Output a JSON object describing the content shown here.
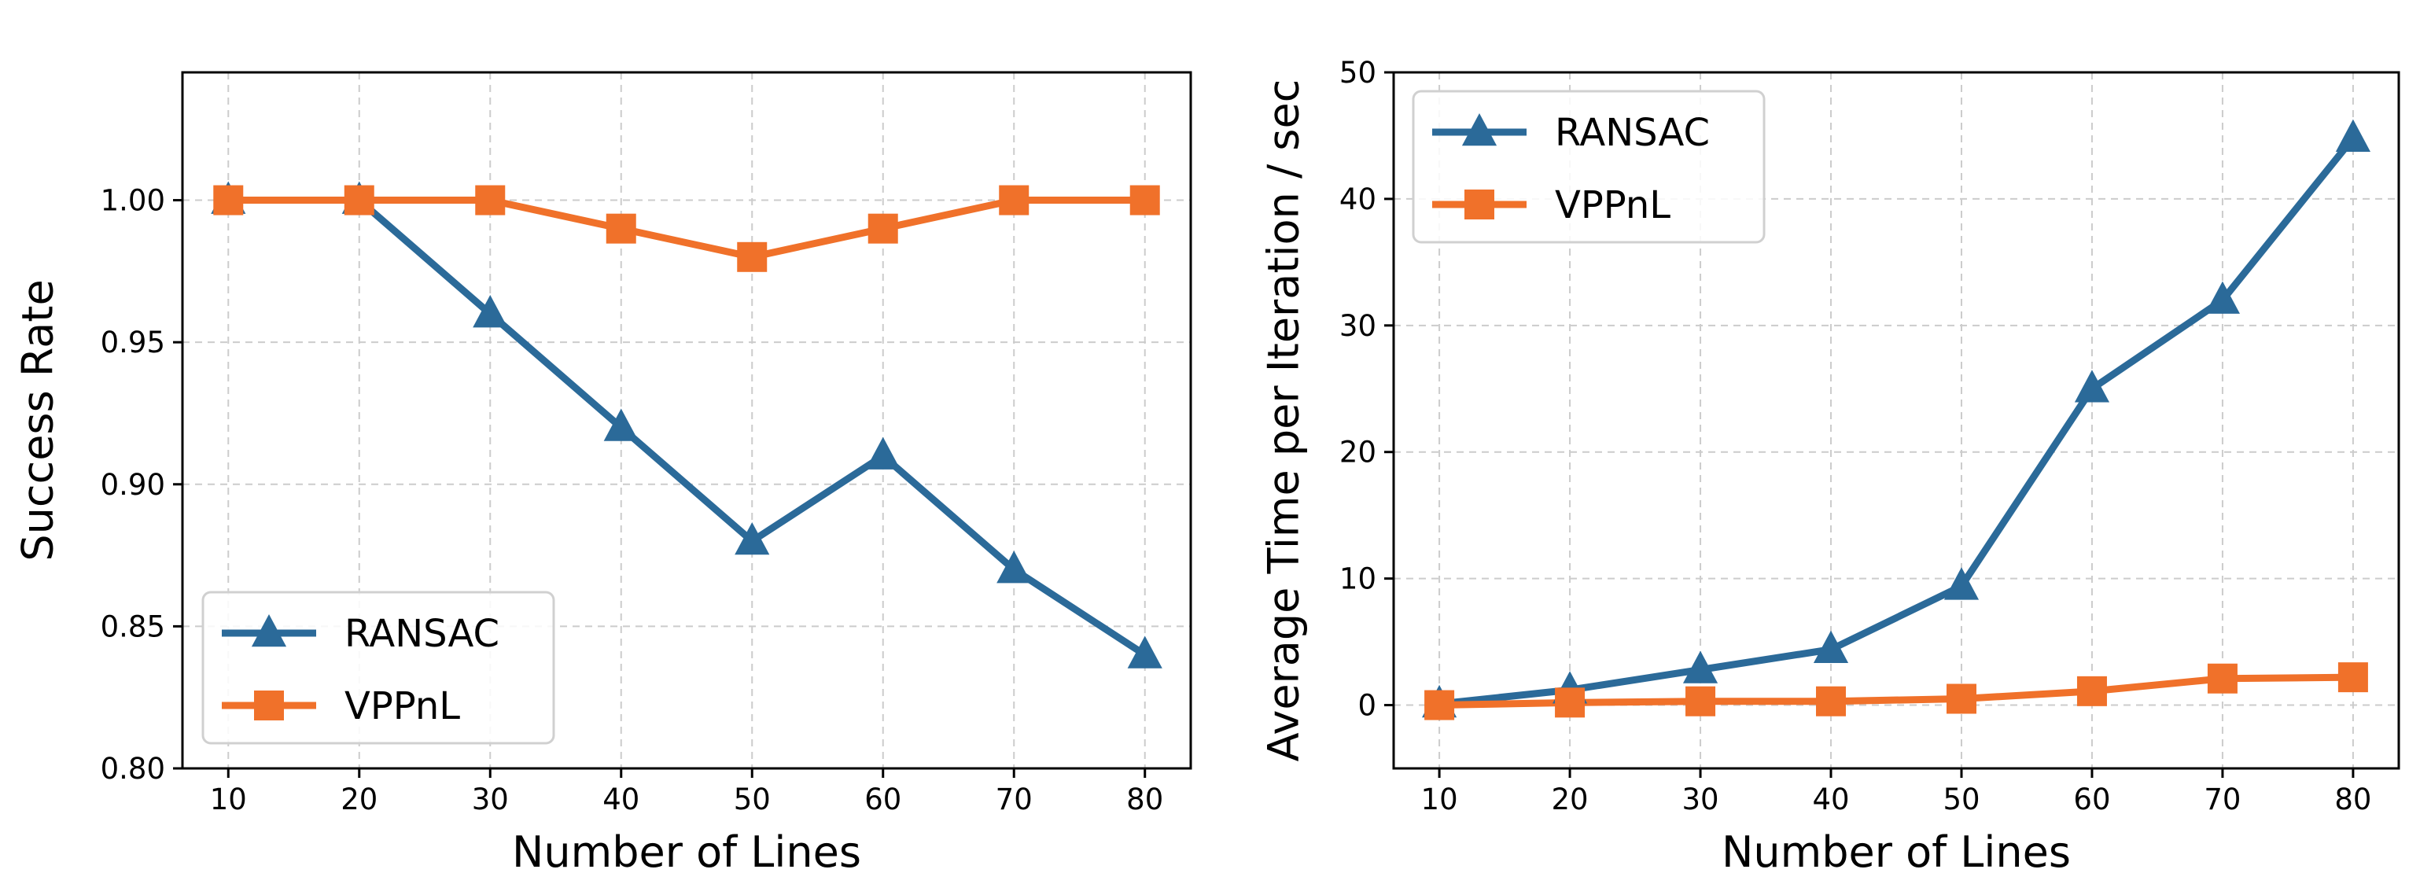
{
  "colors": {
    "ransac": "#2b6a99",
    "vppnl": "#f0712a"
  },
  "chart_data": [
    {
      "type": "line",
      "xlabel": "Number of Lines",
      "ylabel": "Success Rate",
      "x": [
        10,
        20,
        30,
        40,
        50,
        60,
        70,
        80
      ],
      "xlim": [
        6.5,
        83.5
      ],
      "ylim": [
        0.8,
        1.045
      ],
      "xticks": [
        "10",
        "20",
        "30",
        "40",
        "50",
        "60",
        "70",
        "80"
      ],
      "yticks": [
        "0.80",
        "0.85",
        "0.90",
        "0.95",
        "1.00"
      ],
      "ytick_values": [
        0.8,
        0.85,
        0.9,
        0.95,
        1.0
      ],
      "grid": true,
      "legend_position": "lower-left",
      "series": [
        {
          "name": "RANSAC",
          "marker": "triangle",
          "values": [
            1.0,
            1.0,
            0.96,
            0.92,
            0.88,
            0.91,
            0.87,
            0.84
          ]
        },
        {
          "name": "VPPnL",
          "marker": "square",
          "values": [
            1.0,
            1.0,
            1.0,
            0.99,
            0.98,
            0.99,
            1.0,
            1.0
          ]
        }
      ]
    },
    {
      "type": "line",
      "xlabel": "Number of Lines",
      "ylabel": "Average Time per Iteration / sec",
      "x": [
        10,
        20,
        30,
        40,
        50,
        60,
        70,
        80
      ],
      "xlim": [
        6.5,
        83.5
      ],
      "ylim": [
        -5,
        50
      ],
      "xticks": [
        "10",
        "20",
        "30",
        "40",
        "50",
        "60",
        "70",
        "80"
      ],
      "yticks": [
        "0",
        "10",
        "20",
        "30",
        "40",
        "50"
      ],
      "ytick_values": [
        0,
        10,
        20,
        30,
        40,
        50
      ],
      "grid": true,
      "legend_position": "upper-left",
      "series": [
        {
          "name": "RANSAC",
          "marker": "triangle",
          "values": [
            0.1,
            1.2,
            2.8,
            4.4,
            9.4,
            25.0,
            32.0,
            44.8
          ]
        },
        {
          "name": "VPPnL",
          "marker": "square",
          "values": [
            0.0,
            0.2,
            0.3,
            0.3,
            0.5,
            1.1,
            2.1,
            2.2
          ]
        }
      ]
    }
  ]
}
